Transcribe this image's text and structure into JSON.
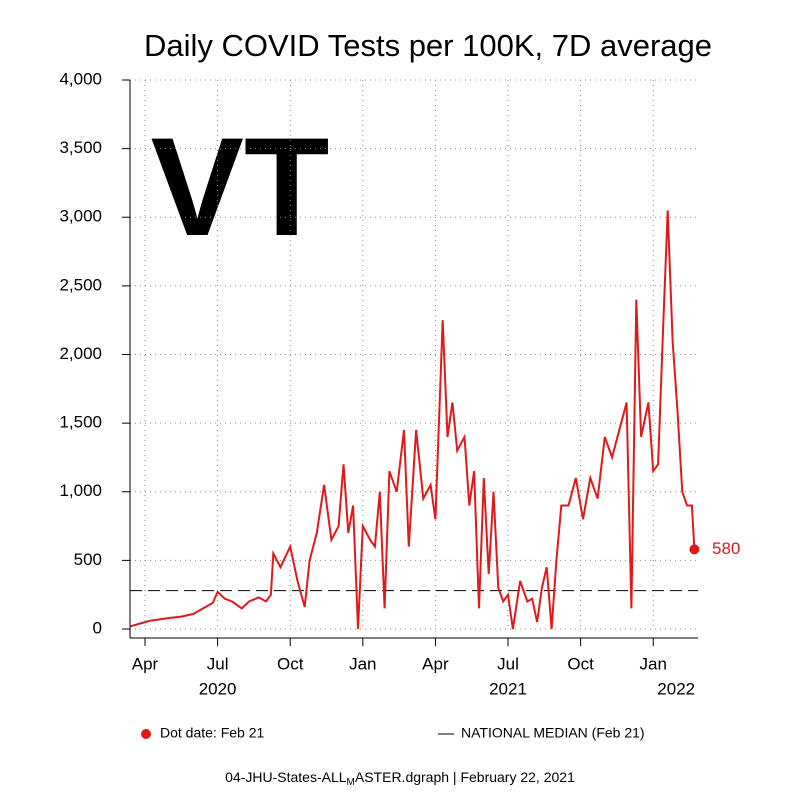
{
  "chart_data": {
    "type": "line",
    "title": "Daily COVID Tests per 100K, 7D average",
    "state": "VT",
    "color": "#e0191b",
    "grid": true,
    "xlim": [
      2.38,
      25.85
    ],
    "xticks": [
      {
        "value": 3,
        "label": "Apr"
      },
      {
        "value": 6,
        "label": "Jul"
      },
      {
        "value": 9,
        "label": "Oct"
      },
      {
        "value": 12,
        "label": "Jan"
      },
      {
        "value": 15,
        "label": "Apr"
      },
      {
        "value": 18,
        "label": "Jul"
      },
      {
        "value": 21,
        "label": "Oct"
      },
      {
        "value": 24,
        "label": "Jan"
      }
    ],
    "xyears": [
      {
        "value": 6,
        "label": "2020"
      },
      {
        "value": 18,
        "label": "2021"
      },
      {
        "value": 24.95,
        "label": "2022"
      }
    ],
    "ylim": [
      0,
      4000
    ],
    "yticks": [
      0,
      500,
      {
        "value": 1000,
        "label": "1,000"
      },
      {
        "value": 1500,
        "label": "1,500"
      },
      {
        "value": 2000,
        "label": "2,000"
      },
      {
        "value": 2500,
        "label": "2,500"
      },
      {
        "value": 3000,
        "label": "3,000"
      },
      {
        "value": 3500,
        "label": "3,500"
      },
      {
        "value": 4000,
        "label": "4,000"
      }
    ],
    "series": [
      {
        "name": "Dot date: Feb 21",
        "x": [
          2.4,
          2.8,
          3.2,
          3.6,
          4.0,
          4.5,
          5.0,
          5.4,
          5.8,
          6.0,
          6.3,
          6.6,
          7.0,
          7.3,
          7.7,
          8.0,
          8.2,
          8.3,
          8.6,
          9.0,
          9.3,
          9.6,
          9.8,
          10.1,
          10.4,
          10.7,
          11.0,
          11.2,
          11.4,
          11.6,
          11.8,
          12.0,
          12.3,
          12.5,
          12.7,
          12.9,
          13.1,
          13.4,
          13.7,
          13.9,
          14.2,
          14.5,
          14.8,
          15.0,
          15.3,
          15.5,
          15.7,
          15.9,
          16.2,
          16.4,
          16.6,
          16.8,
          17.0,
          17.2,
          17.4,
          17.6,
          17.8,
          18.0,
          18.2,
          18.5,
          18.8,
          19.0,
          19.2,
          19.4,
          19.6,
          19.8,
          20.0,
          20.2,
          20.5,
          20.8,
          21.1,
          21.4,
          21.7,
          22.0,
          22.3,
          22.6,
          22.9,
          23.1,
          23.3,
          23.5,
          23.8,
          24.0,
          24.2,
          24.4,
          24.6,
          24.8,
          25.0,
          25.2,
          25.4,
          25.6,
          25.7
        ],
        "values": [
          20,
          40,
          60,
          70,
          80,
          90,
          110,
          150,
          190,
          270,
          220,
          200,
          150,
          200,
          230,
          200,
          250,
          550,
          450,
          600,
          350,
          160,
          500,
          700,
          1050,
          650,
          750,
          1200,
          700,
          900,
          0,
          750,
          650,
          600,
          1000,
          150,
          1150,
          1000,
          1450,
          600,
          1450,
          950,
          1050,
          800,
          2250,
          1400,
          1650,
          1300,
          1400,
          900,
          1150,
          150,
          1100,
          400,
          1000,
          300,
          200,
          250,
          0,
          350,
          200,
          220,
          50,
          300,
          450,
          0,
          500,
          900,
          900,
          1100,
          800,
          1100,
          950,
          1400,
          1250,
          1450,
          1650,
          150,
          2400,
          1400,
          1650,
          1150,
          1200,
          2150,
          3050,
          2100,
          1600,
          1000,
          900,
          900,
          580
        ]
      }
    ],
    "dot": {
      "value": 580,
      "value_label": "580"
    },
    "median": {
      "name": "NATIONAL MEDIAN (Feb 21)",
      "value": 280
    },
    "footer_prefix": "04-JHU-States-ALL",
    "footer_sub": "M",
    "footer_suffix": "ASTER.dgraph | February 22, 2021"
  }
}
